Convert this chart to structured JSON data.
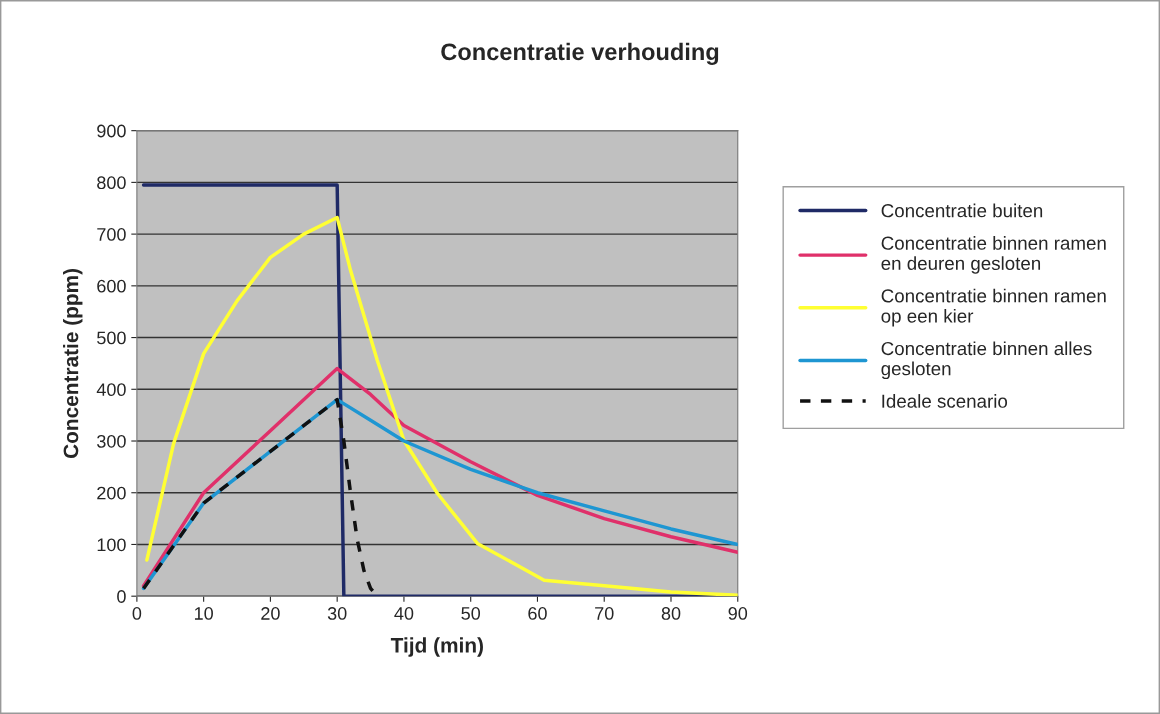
{
  "chart_data": {
    "type": "line",
    "title": "Concentratie verhouding",
    "xlabel": "Tijd (min)",
    "ylabel": "Concentratie (ppm)",
    "xlim": [
      0,
      90
    ],
    "xticks": [
      0,
      10,
      20,
      30,
      40,
      50,
      60,
      70,
      80,
      90
    ],
    "ylim": [
      0,
      900
    ],
    "yticks": [
      0,
      100,
      200,
      300,
      400,
      500,
      600,
      700,
      800,
      900
    ],
    "grid": "y",
    "legend": "right",
    "marker": "none",
    "series": [
      {
        "name": "Concentratie buiten",
        "color": "#1f2a66",
        "line_style": "solid",
        "x": [
          1,
          30,
          31,
          90
        ],
        "values": [
          795,
          795,
          0,
          0
        ]
      },
      {
        "name": "Concentratie binnen ramen\nen deuren gesloten",
        "color": "#e0306a",
        "line_style": "solid",
        "x": [
          1,
          10,
          20,
          30,
          35,
          40,
          50,
          60,
          70,
          80,
          90
        ],
        "values": [
          20,
          200,
          320,
          440,
          390,
          330,
          260,
          195,
          150,
          115,
          85
        ]
      },
      {
        "name": "Concentratie binnen ramen\nop een kier",
        "color": "#ffff33",
        "line_style": "solid",
        "x": [
          1.5,
          5.5,
          10,
          15,
          20,
          25,
          30,
          32,
          36,
          40,
          45,
          51,
          61,
          70,
          80,
          90
        ],
        "values": [
          70,
          295,
          469,
          571,
          655,
          700,
          732,
          630,
          456,
          301,
          199,
          102,
          31,
          20,
          8,
          2
        ]
      },
      {
        "name": "Concentratie binnen alles\ngesloten",
        "color": "#1e96d2",
        "line_style": "solid",
        "x": [
          1,
          10,
          20,
          30,
          35,
          40,
          50,
          60,
          70,
          80,
          90
        ],
        "values": [
          15,
          180,
          280,
          380,
          340,
          300,
          245,
          200,
          165,
          130,
          100
        ]
      },
      {
        "name": "Ideale scenario",
        "color": "#111111",
        "line_style": "dashed",
        "x": [
          1,
          10,
          20,
          30,
          31,
          32,
          33,
          34,
          35,
          36
        ],
        "values": [
          15,
          180,
          280,
          380,
          300,
          200,
          110,
          50,
          15,
          0
        ]
      }
    ]
  }
}
